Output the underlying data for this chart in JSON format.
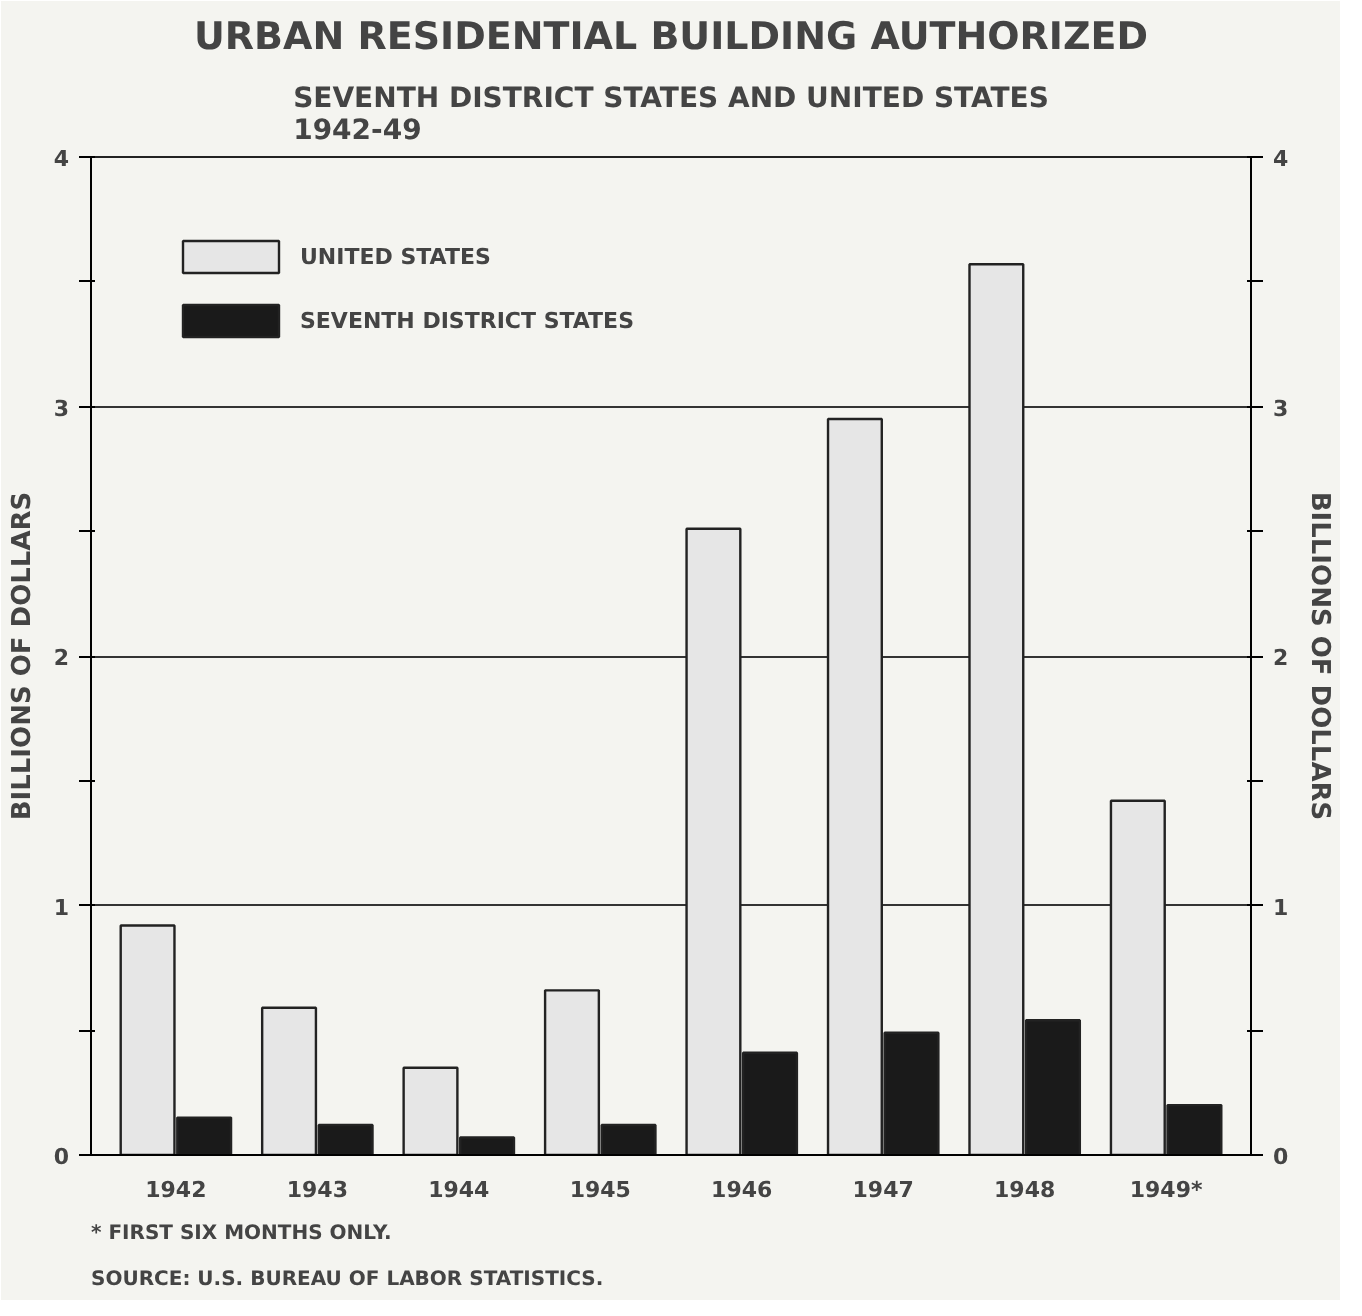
{
  "chart_data": {
    "type": "bar",
    "title": "URBAN RESIDENTIAL BUILDING AUTHORIZED",
    "subtitle": "SEVENTH DISTRICT STATES AND UNITED STATES\n1942-49",
    "ylabel": "BILLIONS OF DOLLARS",
    "y2label": "BILLIONS OF DOLLARS",
    "categories": [
      "1942",
      "1943",
      "1944",
      "1945",
      "1946",
      "1947",
      "1948",
      "1949*"
    ],
    "series": [
      {
        "name": "UNITED STATES",
        "color": "#e6e6e6",
        "values": [
          0.92,
          0.59,
          0.35,
          0.66,
          2.51,
          2.95,
          3.57,
          1.42
        ]
      },
      {
        "name": "SEVENTH DISTRICT STATES",
        "color": "#1a1a1a",
        "values": [
          0.15,
          0.12,
          0.07,
          0.12,
          0.41,
          0.49,
          0.54,
          0.2
        ]
      }
    ],
    "ylim": [
      0,
      4
    ],
    "yticks": [
      0,
      {
        "value": 0.5,
        "label": null
      },
      1,
      {
        "value": 1.5,
        "label": null
      },
      2,
      {
        "value": 2.5,
        "label": null
      },
      3,
      {
        "value": 3.5,
        "label": null
      },
      4
    ],
    "y2lim": [
      0,
      4
    ],
    "y2ticks": [
      0,
      {
        "value": 0.5,
        "label": null
      },
      1,
      {
        "value": 1.5,
        "label": null
      },
      2,
      {
        "value": 2.5,
        "label": null
      },
      3,
      {
        "value": 3.5,
        "label": null
      },
      4
    ],
    "grid": "y",
    "legend": "top left",
    "annotations": [
      "* FIRST SIX MONTHS ONLY.",
      "SOURCE: U.S. BUREAU OF LABOR STATISTICS."
    ]
  }
}
